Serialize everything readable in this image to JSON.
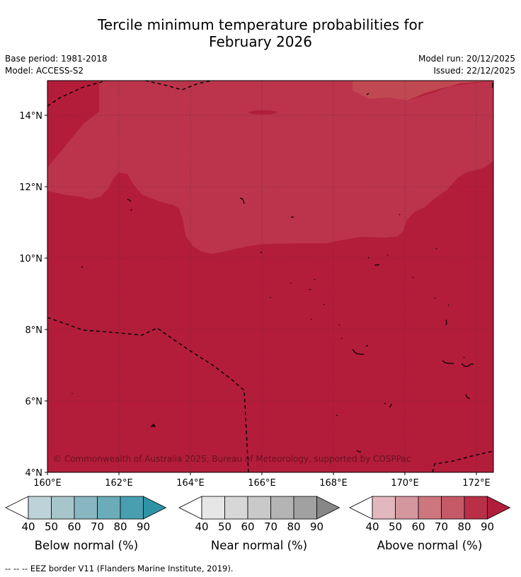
{
  "title_line1": "Tercile minimum temperature probabilities for",
  "title_line2": "February 2026",
  "base_period": "Base period: 1981-2018",
  "model": "Model: ACCESS-S2",
  "model_run": "Model run: 20/12/2025",
  "issued": "Issued: 22/12/2025",
  "copyright": "© Commonwealth of Australia 2025, Bureau of Meteorology, supported by COSPPac",
  "lat_ticks": [
    "14°N",
    "12°N",
    "10°N",
    "8°N",
    "6°N",
    "4°N"
  ],
  "lon_ticks": [
    "160°E",
    "162°E",
    "164°E",
    "166°E",
    "168°E",
    "170°E",
    "172°E"
  ],
  "map_bounds": {
    "lon_min": 160,
    "lon_max": 172.5,
    "lat_min": 4,
    "lat_max": 15
  },
  "colorbars": [
    {
      "label": "Below normal (%)",
      "ticks": [
        "40",
        "50",
        "60",
        "70",
        "80",
        "90"
      ],
      "colors": [
        "#ffffff",
        "#bdd3d9",
        "#a6c6cb",
        "#88b6c1",
        "#6aadb9",
        "#479fb0",
        "#2f93a6"
      ]
    },
    {
      "label": "Near normal (%)",
      "ticks": [
        "40",
        "50",
        "60",
        "70",
        "80",
        "90"
      ],
      "colors": [
        "#ffffff",
        "#e6e6e6",
        "#d7d7d7",
        "#c9c9c9",
        "#b4b4b4",
        "#a1a1a1",
        "#878787"
      ]
    },
    {
      "label": "Above normal (%)",
      "ticks": [
        "40",
        "50",
        "60",
        "70",
        "80",
        "90"
      ],
      "colors": [
        "#ffffff",
        "#e2b7bd",
        "#d5979e",
        "#cd767e",
        "#c45a66",
        "#b92f48",
        "#b01e3c"
      ]
    }
  ],
  "fill_colors": {
    "above_80_90": "#bb344b",
    "above_90": "#b31d3a"
  },
  "footnote": "--  --  -- EEZ border V11 (Flanders Marine Institute, 2019)."
}
